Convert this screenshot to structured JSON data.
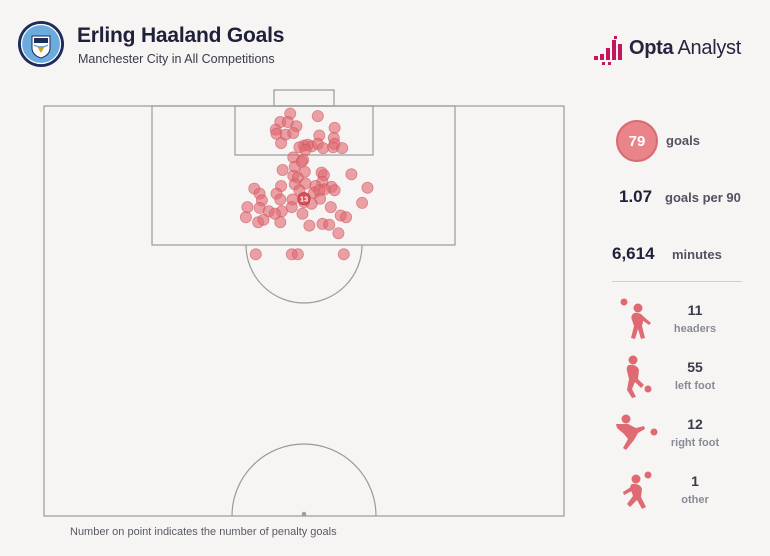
{
  "header": {
    "title": "Erling Haaland Goals",
    "subtitle": "Manchester City in All Competitions",
    "brand_name_bold": "Opta",
    "brand_name_rest": " Analyst"
  },
  "badge_text": "MANCHESTER CITY",
  "stats": {
    "goals_value": "79",
    "goals_label": "goals",
    "per90_value": "1.07",
    "per90_label": "goals per 90",
    "minutes_value": "6,614",
    "minutes_label": "minutes"
  },
  "goal_types": [
    {
      "value": "11",
      "label": "headers",
      "icon": "header-player-icon"
    },
    {
      "value": "55",
      "label": "left foot",
      "icon": "left-foot-player-icon"
    },
    {
      "value": "12",
      "label": "right foot",
      "icon": "right-foot-player-icon"
    },
    {
      "value": "1",
      "label": "other",
      "icon": "other-player-icon"
    }
  ],
  "footnote": "Number on point indicates the number of penalty goals",
  "colors": {
    "shot_fill": "#e06a72",
    "shot_stroke": "#c9505a",
    "pitch_line": "#9a9a9a",
    "accent": "#e8848a",
    "brand": "#c2185b"
  },
  "chart_data": {
    "type": "scatter",
    "x_axis": "pitch width (metres, 0 = left touchline, 68 = right touchline)",
    "y_axis": "distance from goal line (metres)",
    "xlim": [
      0,
      68
    ],
    "ylim": [
      0,
      52.5
    ],
    "penalty_point": {
      "x": 34,
      "y": 11,
      "label": "13"
    },
    "points": [
      {
        "x": 32.2,
        "y": 0.9
      },
      {
        "x": 35.8,
        "y": 1.2
      },
      {
        "x": 30.9,
        "y": 1.9
      },
      {
        "x": 31.9,
        "y": 1.9
      },
      {
        "x": 30.3,
        "y": 2.8
      },
      {
        "x": 33.0,
        "y": 2.4
      },
      {
        "x": 38.0,
        "y": 2.6
      },
      {
        "x": 30.4,
        "y": 3.3
      },
      {
        "x": 31.6,
        "y": 3.4
      },
      {
        "x": 32.6,
        "y": 3.2
      },
      {
        "x": 36.0,
        "y": 3.5
      },
      {
        "x": 37.9,
        "y": 3.8
      },
      {
        "x": 31.0,
        "y": 4.4
      },
      {
        "x": 34.0,
        "y": 4.7
      },
      {
        "x": 34.5,
        "y": 4.6
      },
      {
        "x": 35.0,
        "y": 4.8
      },
      {
        "x": 35.8,
        "y": 4.5
      },
      {
        "x": 36.5,
        "y": 5.0
      },
      {
        "x": 37.8,
        "y": 4.9
      },
      {
        "x": 38.0,
        "y": 4.5
      },
      {
        "x": 33.4,
        "y": 4.9
      },
      {
        "x": 34.2,
        "y": 5.2
      },
      {
        "x": 39.0,
        "y": 5.0
      },
      {
        "x": 32.6,
        "y": 6.1
      },
      {
        "x": 33.9,
        "y": 6.4
      },
      {
        "x": 32.8,
        "y": 7.2
      },
      {
        "x": 33.7,
        "y": 6.6
      },
      {
        "x": 31.2,
        "y": 7.6
      },
      {
        "x": 32.6,
        "y": 8.3
      },
      {
        "x": 33.2,
        "y": 8.5
      },
      {
        "x": 34.1,
        "y": 7.8
      },
      {
        "x": 36.3,
        "y": 7.9
      },
      {
        "x": 36.6,
        "y": 8.2
      },
      {
        "x": 36.4,
        "y": 9.0
      },
      {
        "x": 31.0,
        "y": 9.5
      },
      {
        "x": 32.8,
        "y": 9.3
      },
      {
        "x": 34.2,
        "y": 9.2
      },
      {
        "x": 35.5,
        "y": 9.5
      },
      {
        "x": 37.6,
        "y": 9.6
      },
      {
        "x": 27.5,
        "y": 9.8
      },
      {
        "x": 33.4,
        "y": 10.0
      },
      {
        "x": 35.3,
        "y": 10.3
      },
      {
        "x": 36.7,
        "y": 9.9
      },
      {
        "x": 28.2,
        "y": 10.4
      },
      {
        "x": 30.4,
        "y": 10.4
      },
      {
        "x": 36.0,
        "y": 10.0
      },
      {
        "x": 40.2,
        "y": 8.1
      },
      {
        "x": 28.5,
        "y": 11.2
      },
      {
        "x": 30.9,
        "y": 11.1
      },
      {
        "x": 32.5,
        "y": 11.1
      },
      {
        "x": 34.0,
        "y": 11.4
      },
      {
        "x": 36.1,
        "y": 11.0
      },
      {
        "x": 38.0,
        "y": 10.0
      },
      {
        "x": 26.6,
        "y": 12.0
      },
      {
        "x": 28.2,
        "y": 12.1
      },
      {
        "x": 31.1,
        "y": 12.5
      },
      {
        "x": 32.4,
        "y": 12.0
      },
      {
        "x": 35.0,
        "y": 11.6
      },
      {
        "x": 37.5,
        "y": 12.0
      },
      {
        "x": 41.6,
        "y": 11.5
      },
      {
        "x": 42.3,
        "y": 9.7
      },
      {
        "x": 29.4,
        "y": 12.5
      },
      {
        "x": 30.2,
        "y": 12.8
      },
      {
        "x": 33.8,
        "y": 12.8
      },
      {
        "x": 26.4,
        "y": 13.2
      },
      {
        "x": 28.0,
        "y": 13.8
      },
      {
        "x": 28.7,
        "y": 13.5
      },
      {
        "x": 30.9,
        "y": 13.8
      },
      {
        "x": 34.7,
        "y": 14.2
      },
      {
        "x": 36.4,
        "y": 14.0
      },
      {
        "x": 37.3,
        "y": 14.1
      },
      {
        "x": 38.8,
        "y": 13.0
      },
      {
        "x": 39.5,
        "y": 13.2
      },
      {
        "x": 38.5,
        "y": 15.1
      },
      {
        "x": 27.7,
        "y": 17.6
      },
      {
        "x": 32.4,
        "y": 17.6
      },
      {
        "x": 33.2,
        "y": 17.6
      },
      {
        "x": 39.2,
        "y": 17.6
      }
    ]
  }
}
